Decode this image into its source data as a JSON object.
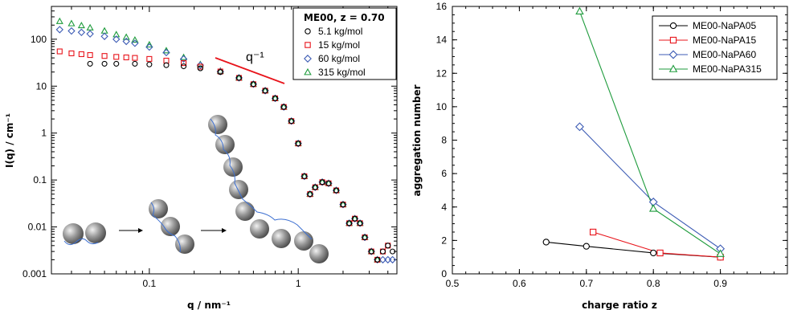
{
  "chart_data": [
    {
      "type": "scatter",
      "xlabel": "q / nm⁻¹",
      "ylabel": "I(q) / cm⁻¹",
      "xscale": "log",
      "yscale": "log",
      "xlim": [
        0.022,
        4.6
      ],
      "ylim": [
        0.001,
        500
      ],
      "x_ticks": [
        "0.1",
        "1"
      ],
      "y_ticks": [
        "0.001",
        "0.01",
        "0.1",
        "1",
        "10",
        "100"
      ],
      "legend_title": "ME00, z = 0.70",
      "legend_placement": "top-right",
      "annotation": "q⁻¹",
      "series": [
        {
          "name": "5.1  kg/mol",
          "marker": "circle",
          "color": "#000000",
          "x": [
            0.04,
            0.05,
            0.06,
            0.08,
            0.1,
            0.13,
            0.17,
            0.22,
            0.3,
            0.4,
            0.5,
            0.6,
            0.7,
            0.8,
            0.9,
            1.0,
            1.1,
            1.2,
            1.3,
            1.45,
            1.6,
            1.8,
            2.0,
            2.2,
            2.4,
            2.6,
            2.8,
            3.1,
            3.4,
            3.7,
            4.0,
            4.3
          ],
          "y": [
            30,
            30,
            30,
            30,
            29,
            28,
            26.5,
            24,
            20,
            15,
            11,
            8,
            5.5,
            3.6,
            1.8,
            0.6,
            0.12,
            0.05,
            0.07,
            0.09,
            0.085,
            0.06,
            0.03,
            0.012,
            0.015,
            0.012,
            0.006,
            0.003,
            0.002,
            0.003,
            0.004,
            0.003
          ]
        },
        {
          "name": "15   kg/mol",
          "marker": "square",
          "color": "#e8141b",
          "x": [
            0.025,
            0.03,
            0.035,
            0.04,
            0.05,
            0.06,
            0.07,
            0.08,
            0.1,
            0.13,
            0.17,
            0.22,
            0.3,
            0.4,
            0.5,
            0.6,
            0.7,
            0.8,
            0.9,
            1.0,
            1.1,
            1.2,
            1.3,
            1.45,
            1.6,
            1.8,
            2.0,
            2.2,
            2.4,
            2.6,
            2.8,
            3.1,
            3.4,
            3.7,
            4.0
          ],
          "y": [
            55,
            50,
            48,
            46,
            44,
            42,
            41,
            40,
            38,
            35,
            31,
            26,
            20.5,
            15,
            11,
            8,
            5.5,
            3.6,
            1.8,
            0.6,
            0.12,
            0.05,
            0.07,
            0.09,
            0.085,
            0.06,
            0.03,
            0.012,
            0.015,
            0.012,
            0.006,
            0.003,
            0.002,
            0.003,
            0.004
          ]
        },
        {
          "name": "60   kg/mol",
          "marker": "diamond",
          "color": "#3c5bb4",
          "x": [
            0.025,
            0.03,
            0.035,
            0.04,
            0.05,
            0.06,
            0.07,
            0.08,
            0.1,
            0.13,
            0.17,
            0.22,
            0.3,
            0.4,
            0.5,
            0.6,
            0.7,
            0.8,
            0.9,
            1.0,
            1.1,
            1.2,
            1.3,
            1.45,
            1.6,
            1.8,
            2.0,
            2.2,
            2.4,
            2.6,
            2.8,
            3.1,
            3.4,
            3.7,
            4.0,
            4.3
          ],
          "y": [
            160,
            150,
            140,
            130,
            115,
            100,
            90,
            82,
            68,
            52,
            38,
            28,
            20.5,
            15,
            11,
            8,
            5.5,
            3.6,
            1.8,
            0.6,
            0.12,
            0.05,
            0.07,
            0.09,
            0.085,
            0.06,
            0.03,
            0.012,
            0.015,
            0.012,
            0.006,
            0.003,
            0.002,
            0.002,
            0.002,
            0.002
          ]
        },
        {
          "name": "315 kg/mol",
          "marker": "triangle",
          "color": "#1e9b3c",
          "x": [
            0.025,
            0.03,
            0.035,
            0.04,
            0.05,
            0.06,
            0.07,
            0.08,
            0.1,
            0.13,
            0.17,
            0.22,
            0.3,
            0.4,
            0.5,
            0.6,
            0.7,
            0.8,
            0.9,
            1.0,
            1.1,
            1.2,
            1.3,
            1.45,
            1.6,
            1.8,
            2.0,
            2.2,
            2.4,
            2.6,
            2.8,
            3.1,
            3.4
          ],
          "y": [
            240,
            215,
            195,
            175,
            150,
            125,
            110,
            96,
            76,
            57,
            41,
            29,
            21,
            15,
            11,
            8,
            5.5,
            3.6,
            1.8,
            0.6,
            0.12,
            0.05,
            0.07,
            0.09,
            0.085,
            0.06,
            0.03,
            0.012,
            0.015,
            0.012,
            0.006,
            0.003,
            0.002
          ]
        }
      ]
    },
    {
      "type": "line",
      "xlabel": "charge ratio z",
      "ylabel": "aggregation number",
      "xlim": [
        0.5,
        1.0
      ],
      "ylim": [
        0,
        16
      ],
      "x_ticks": [
        "0.5",
        "0.6",
        "0.7",
        "0.8",
        "0.9"
      ],
      "y_ticks": [
        "0",
        "2",
        "4",
        "6",
        "8",
        "10",
        "12",
        "14",
        "16"
      ],
      "legend_placement": "top-right",
      "series": [
        {
          "name": "ME00-NaPA05",
          "marker": "circle",
          "color": "#000000",
          "x": [
            0.64,
            0.7,
            0.8,
            0.9
          ],
          "y": [
            1.9,
            1.65,
            1.25,
            1.0
          ]
        },
        {
          "name": "ME00-NaPA15",
          "marker": "square",
          "color": "#e8141b",
          "x": [
            0.71,
            0.81,
            0.9
          ],
          "y": [
            2.5,
            1.25,
            1.0
          ]
        },
        {
          "name": "ME00-NaPA60",
          "marker": "diamond",
          "color": "#3c5bb4",
          "x": [
            0.69,
            0.8,
            0.9
          ],
          "y": [
            8.8,
            4.3,
            1.5
          ]
        },
        {
          "name": "ME00-NaPA315",
          "marker": "triangle",
          "color": "#1e9b3c",
          "x": [
            0.69,
            0.8,
            0.9
          ],
          "y": [
            15.7,
            3.9,
            1.2
          ]
        }
      ]
    }
  ]
}
